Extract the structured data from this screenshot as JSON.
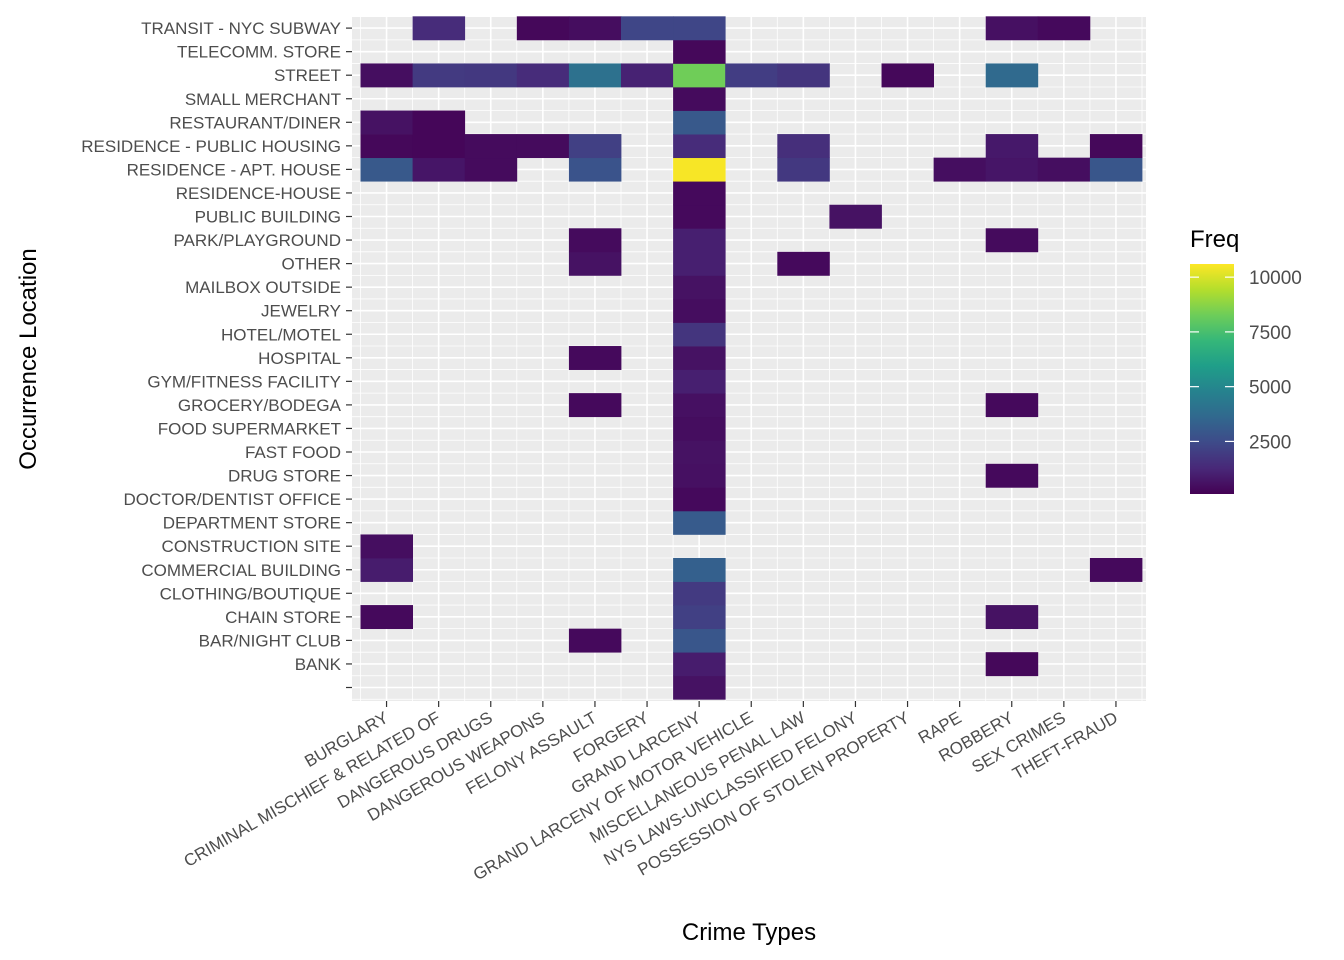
{
  "chart_data": {
    "type": "heatmap",
    "xlabel": "Crime Types",
    "ylabel": "Occurrence Location",
    "x_categories": [
      "BURGLARY",
      "CRIMINAL MISCHIEF & RELATED OF",
      "DANGEROUS DRUGS",
      "DANGEROUS WEAPONS",
      "FELONY ASSAULT",
      "FORGERY",
      "GRAND LARCENY",
      "GRAND LARCENY OF MOTOR VEHICLE",
      "MISCELLANEOUS PENAL LAW",
      "NYS LAWS-UNCLASSIFIED FELONY",
      "POSSESSION OF STOLEN PROPERTY",
      "RAPE",
      "ROBBERY",
      "SEX CRIMES",
      "THEFT-FRAUD"
    ],
    "y_categories": [
      "",
      "BANK",
      "BAR/NIGHT CLUB",
      "CHAIN STORE",
      "CLOTHING/BOUTIQUE",
      "COMMERCIAL BUILDING",
      "CONSTRUCTION SITE",
      "DEPARTMENT STORE",
      "DOCTOR/DENTIST OFFICE",
      "DRUG STORE",
      "FAST FOOD",
      "FOOD SUPERMARKET",
      "GROCERY/BODEGA",
      "GYM/FITNESS FACILITY",
      "HOSPITAL",
      "HOTEL/MOTEL",
      "JEWELRY",
      "MAILBOX OUTSIDE",
      "OTHER",
      "PARK/PLAYGROUND",
      "PUBLIC BUILDING",
      "RESIDENCE-HOUSE",
      "RESIDENCE - APT. HOUSE",
      "RESIDENCE - PUBLIC HOUSING",
      "RESTAURANT/DINER",
      "SMALL MERCHANT",
      "STREET",
      "TELECOMM. STORE",
      "TRANSIT - NYC SUBWAY"
    ],
    "cells": [
      {
        "x": "GRAND LARCENY",
        "y": "",
        "v": 600
      },
      {
        "x": "GRAND LARCENY",
        "y": "BANK",
        "v": 900
      },
      {
        "x": "ROBBERY",
        "y": "BANK",
        "v": 300
      },
      {
        "x": "FELONY ASSAULT",
        "y": "BAR/NIGHT CLUB",
        "v": 350
      },
      {
        "x": "GRAND LARCENY",
        "y": "BAR/NIGHT CLUB",
        "v": 2900
      },
      {
        "x": "BURGLARY",
        "y": "CHAIN STORE",
        "v": 350
      },
      {
        "x": "GRAND LARCENY",
        "y": "CHAIN STORE",
        "v": 2100
      },
      {
        "x": "ROBBERY",
        "y": "CHAIN STORE",
        "v": 600
      },
      {
        "x": "GRAND LARCENY",
        "y": "CLOTHING/BOUTIQUE",
        "v": 1900
      },
      {
        "x": "BURGLARY",
        "y": "COMMERCIAL BUILDING",
        "v": 900
      },
      {
        "x": "GRAND LARCENY",
        "y": "COMMERCIAL BUILDING",
        "v": 3300
      },
      {
        "x": "THEFT-FRAUD",
        "y": "COMMERCIAL BUILDING",
        "v": 350
      },
      {
        "x": "BURGLARY",
        "y": "CONSTRUCTION SITE",
        "v": 500
      },
      {
        "x": "GRAND LARCENY",
        "y": "DEPARTMENT STORE",
        "v": 3100
      },
      {
        "x": "GRAND LARCENY",
        "y": "DOCTOR/DENTIST OFFICE",
        "v": 350
      },
      {
        "x": "GRAND LARCENY",
        "y": "DRUG STORE",
        "v": 550
      },
      {
        "x": "ROBBERY",
        "y": "DRUG STORE",
        "v": 350
      },
      {
        "x": "GRAND LARCENY",
        "y": "FAST FOOD",
        "v": 600
      },
      {
        "x": "GRAND LARCENY",
        "y": "FOOD SUPERMARKET",
        "v": 450
      },
      {
        "x": "FELONY ASSAULT",
        "y": "GROCERY/BODEGA",
        "v": 350
      },
      {
        "x": "GRAND LARCENY",
        "y": "GROCERY/BODEGA",
        "v": 550
      },
      {
        "x": "ROBBERY",
        "y": "GROCERY/BODEGA",
        "v": 350
      },
      {
        "x": "GRAND LARCENY",
        "y": "GYM/FITNESS FACILITY",
        "v": 1000
      },
      {
        "x": "FELONY ASSAULT",
        "y": "HOSPITAL",
        "v": 350
      },
      {
        "x": "GRAND LARCENY",
        "y": "HOSPITAL",
        "v": 600
      },
      {
        "x": "GRAND LARCENY",
        "y": "HOTEL/MOTEL",
        "v": 1700
      },
      {
        "x": "GRAND LARCENY",
        "y": "JEWELRY",
        "v": 450
      },
      {
        "x": "GRAND LARCENY",
        "y": "MAILBOX OUTSIDE",
        "v": 600
      },
      {
        "x": "FELONY ASSAULT",
        "y": "OTHER",
        "v": 600
      },
      {
        "x": "GRAND LARCENY",
        "y": "OTHER",
        "v": 1000
      },
      {
        "x": "MISCELLANEOUS PENAL LAW",
        "y": "OTHER",
        "v": 350
      },
      {
        "x": "FELONY ASSAULT",
        "y": "PARK/PLAYGROUND",
        "v": 400
      },
      {
        "x": "GRAND LARCENY",
        "y": "PARK/PLAYGROUND",
        "v": 1000
      },
      {
        "x": "ROBBERY",
        "y": "PARK/PLAYGROUND",
        "v": 400
      },
      {
        "x": "GRAND LARCENY",
        "y": "PUBLIC BUILDING",
        "v": 350
      },
      {
        "x": "NYS LAWS-UNCLASSIFIED FELONY",
        "y": "PUBLIC BUILDING",
        "v": 600
      },
      {
        "x": "GRAND LARCENY",
        "y": "RESIDENCE-HOUSE",
        "v": 350
      },
      {
        "x": "BURGLARY",
        "y": "RESIDENCE - APT. HOUSE",
        "v": 3000
      },
      {
        "x": "CRIMINAL MISCHIEF & RELATED OF",
        "y": "RESIDENCE - APT. HOUSE",
        "v": 700
      },
      {
        "x": "DANGEROUS DRUGS",
        "y": "RESIDENCE - APT. HOUSE",
        "v": 400
      },
      {
        "x": "FELONY ASSAULT",
        "y": "RESIDENCE - APT. HOUSE",
        "v": 2800
      },
      {
        "x": "GRAND LARCENY",
        "y": "RESIDENCE - APT. HOUSE",
        "v": 10500
      },
      {
        "x": "MISCELLANEOUS PENAL LAW",
        "y": "RESIDENCE - APT. HOUSE",
        "v": 1800
      },
      {
        "x": "RAPE",
        "y": "RESIDENCE - APT. HOUSE",
        "v": 500
      },
      {
        "x": "ROBBERY",
        "y": "RESIDENCE - APT. HOUSE",
        "v": 700
      },
      {
        "x": "SEX CRIMES",
        "y": "RESIDENCE - APT. HOUSE",
        "v": 500
      },
      {
        "x": "THEFT-FRAUD",
        "y": "RESIDENCE - APT. HOUSE",
        "v": 2900
      },
      {
        "x": "BURGLARY",
        "y": "RESIDENCE - PUBLIC HOUSING",
        "v": 300
      },
      {
        "x": "CRIMINAL MISCHIEF & RELATED OF",
        "y": "RESIDENCE - PUBLIC HOUSING",
        "v": 250
      },
      {
        "x": "DANGEROUS DRUGS",
        "y": "RESIDENCE - PUBLIC HOUSING",
        "v": 400
      },
      {
        "x": "DANGEROUS WEAPONS",
        "y": "RESIDENCE - PUBLIC HOUSING",
        "v": 400
      },
      {
        "x": "FELONY ASSAULT",
        "y": "RESIDENCE - PUBLIC HOUSING",
        "v": 2100
      },
      {
        "x": "GRAND LARCENY",
        "y": "RESIDENCE - PUBLIC HOUSING",
        "v": 1400
      },
      {
        "x": "MISCELLANEOUS PENAL LAW",
        "y": "RESIDENCE - PUBLIC HOUSING",
        "v": 1500
      },
      {
        "x": "ROBBERY",
        "y": "RESIDENCE - PUBLIC HOUSING",
        "v": 800
      },
      {
        "x": "THEFT-FRAUD",
        "y": "RESIDENCE - PUBLIC HOUSING",
        "v": 300
      },
      {
        "x": "BURGLARY",
        "y": "RESTAURANT/DINER",
        "v": 600
      },
      {
        "x": "CRIMINAL MISCHIEF & RELATED OF",
        "y": "RESTAURANT/DINER",
        "v": 250
      },
      {
        "x": "GRAND LARCENY",
        "y": "RESTAURANT/DINER",
        "v": 3000
      },
      {
        "x": "GRAND LARCENY",
        "y": "SMALL MERCHANT",
        "v": 400
      },
      {
        "x": "BURGLARY",
        "y": "STREET",
        "v": 500
      },
      {
        "x": "CRIMINAL MISCHIEF & RELATED OF",
        "y": "STREET",
        "v": 1900
      },
      {
        "x": "DANGEROUS DRUGS",
        "y": "STREET",
        "v": 1800
      },
      {
        "x": "DANGEROUS WEAPONS",
        "y": "STREET",
        "v": 1400
      },
      {
        "x": "FELONY ASSAULT",
        "y": "STREET",
        "v": 4000
      },
      {
        "x": "FORGERY",
        "y": "STREET",
        "v": 1100
      },
      {
        "x": "GRAND LARCENY",
        "y": "STREET",
        "v": 8300
      },
      {
        "x": "GRAND LARCENY OF MOTOR VEHICLE",
        "y": "STREET",
        "v": 2000
      },
      {
        "x": "MISCELLANEOUS PENAL LAW",
        "y": "STREET",
        "v": 1700
      },
      {
        "x": "POSSESSION OF STOLEN PROPERTY",
        "y": "STREET",
        "v": 300
      },
      {
        "x": "ROBBERY",
        "y": "STREET",
        "v": 3700
      },
      {
        "x": "GRAND LARCENY",
        "y": "TELECOMM. STORE",
        "v": 300
      },
      {
        "x": "CRIMINAL MISCHIEF & RELATED OF",
        "y": "TRANSIT - NYC SUBWAY",
        "v": 1400
      },
      {
        "x": "DANGEROUS WEAPONS",
        "y": "TRANSIT - NYC SUBWAY",
        "v": 300
      },
      {
        "x": "FELONY ASSAULT",
        "y": "TRANSIT - NYC SUBWAY",
        "v": 450
      },
      {
        "x": "FORGERY",
        "y": "TRANSIT - NYC SUBWAY",
        "v": 2300
      },
      {
        "x": "GRAND LARCENY",
        "y": "TRANSIT - NYC SUBWAY",
        "v": 2300
      },
      {
        "x": "ROBBERY",
        "y": "TRANSIT - NYC SUBWAY",
        "v": 550
      },
      {
        "x": "SEX CRIMES",
        "y": "TRANSIT - NYC SUBWAY",
        "v": 350
      }
    ],
    "legend": {
      "title": "Freq",
      "min": 100,
      "max": 10600,
      "breaks": [
        2500,
        5000,
        7500,
        10000
      ],
      "labels": [
        "2500",
        "5000",
        "7500",
        "10000"
      ]
    },
    "colors": {
      "panel_background": "#EBEBEB",
      "grid": "#FFFFFF",
      "scale": [
        "#440154",
        "#482878",
        "#3E4A89",
        "#31688E",
        "#26828E",
        "#1F9E89",
        "#35B779",
        "#6DCD59",
        "#B4DE2C",
        "#FDE725"
      ]
    }
  }
}
